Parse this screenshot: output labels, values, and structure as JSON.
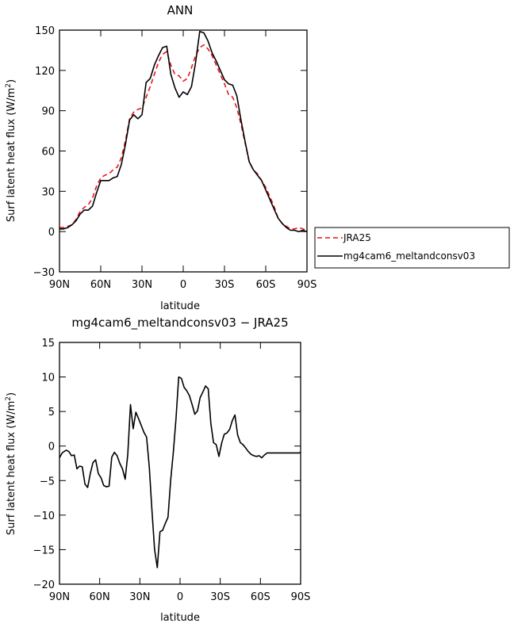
{
  "chart_data": [
    {
      "type": "line",
      "title": "ANN",
      "xlabel": "latitude",
      "ylabel": "Surf latent heat flux (W/m",
      "ylabel_sup": "2",
      "ylabel_end": ")",
      "xlim": [
        -90,
        90
      ],
      "ylim": [
        -30,
        150
      ],
      "xticks": [
        -90,
        -60,
        -30,
        0,
        30,
        60,
        90
      ],
      "xticklabels": [
        "90N",
        "60N",
        "30N",
        "0",
        "30S",
        "60S",
        "90S"
      ],
      "yticks": [
        -30,
        0,
        30,
        60,
        90,
        120,
        150
      ],
      "yticklabels": [
        "−30",
        "0",
        "30",
        "60",
        "90",
        "120",
        "150"
      ],
      "grid": false,
      "legend_position": "right",
      "series": [
        {
          "name": "JRA25",
          "color": "#e8141a",
          "dash": true,
          "x": [
            -90,
            -87,
            -84,
            -81,
            -78,
            -75,
            -72,
            -69,
            -66,
            -63,
            -60,
            -57,
            -54,
            -51,
            -48,
            -45,
            -42,
            -39,
            -36,
            -33,
            -30,
            -27,
            -24,
            -21,
            -18,
            -15,
            -12,
            -9,
            -6,
            -3,
            0,
            3,
            6,
            9,
            12,
            15,
            18,
            21,
            24,
            27,
            30,
            33,
            36,
            39,
            42,
            45,
            48,
            51,
            54,
            57,
            60,
            63,
            66,
            69,
            72,
            75,
            78,
            81,
            84,
            87,
            90
          ],
          "y": [
            3,
            3,
            4,
            5,
            9,
            15,
            18,
            20,
            25,
            34,
            40,
            42,
            43,
            46,
            48,
            55,
            68,
            84,
            89,
            91,
            92,
            100,
            108,
            117,
            126,
            132,
            134,
            124,
            117,
            116,
            112,
            114,
            122,
            131,
            137,
            139,
            136,
            131,
            124,
            117,
            110,
            102,
            100,
            92,
            80,
            66,
            52,
            46,
            43,
            38,
            33,
            26,
            19,
            10,
            6,
            4,
            2,
            2,
            3,
            2,
            1
          ]
        },
        {
          "name": "mg4cam6_meltandconsv03",
          "color": "#000000",
          "dash": false,
          "x": [
            -90,
            -87,
            -84,
            -81,
            -78,
            -75,
            -72,
            -69,
            -66,
            -63,
            -60,
            -57,
            -54,
            -51,
            -48,
            -45,
            -42,
            -39,
            -36,
            -33,
            -30,
            -27,
            -24,
            -21,
            -18,
            -15,
            -12,
            -9,
            -6,
            -3,
            0,
            3,
            6,
            9,
            12,
            15,
            18,
            21,
            24,
            27,
            30,
            33,
            36,
            39,
            42,
            45,
            48,
            51,
            54,
            57,
            60,
            63,
            66,
            69,
            72,
            75,
            78,
            81,
            84,
            87,
            90
          ],
          "y": [
            2,
            2,
            3,
            5,
            8,
            13,
            16,
            16,
            19,
            29,
            38,
            38,
            38,
            40,
            41,
            50,
            65,
            83,
            87,
            84,
            87,
            111,
            114,
            124,
            131,
            137,
            138,
            117,
            107,
            100,
            104,
            102,
            108,
            126,
            149,
            148,
            142,
            133,
            127,
            120,
            113,
            110,
            109,
            101,
            83,
            67,
            52,
            46,
            42,
            38,
            31,
            24,
            17,
            10,
            6,
            3,
            1,
            1,
            0,
            1,
            0
          ]
        }
      ]
    },
    {
      "type": "line",
      "title": "mg4cam6_meltandconsv03 − JRA25",
      "xlabel": "latitude",
      "ylabel": "Surf latent heat flux (W/m",
      "ylabel_sup": "2",
      "ylabel_end": ")",
      "xlim": [
        -90,
        90
      ],
      "ylim": [
        -20,
        15
      ],
      "xticks": [
        -90,
        -60,
        -30,
        0,
        30,
        60,
        90
      ],
      "xticklabels": [
        "90N",
        "60N",
        "30N",
        "0",
        "30S",
        "60S",
        "90S"
      ],
      "yticks": [
        -20,
        -15,
        -10,
        -5,
        0,
        5,
        10,
        15
      ],
      "yticklabels": [
        "−20",
        "−15",
        "−10",
        "−5",
        "0",
        "5",
        "10",
        "15"
      ],
      "grid": false,
      "series": [
        {
          "name": "",
          "color": "#000000",
          "dash": false,
          "x": [
            -90,
            -88,
            -85,
            -83,
            -81,
            -79,
            -77,
            -75,
            -73,
            -71,
            -69,
            -67,
            -65,
            -63,
            -61,
            -59,
            -57,
            -55,
            -53,
            -51,
            -49,
            -47,
            -45,
            -43,
            -41,
            -39,
            -37,
            -35,
            -33,
            -31,
            -29,
            -27,
            -25,
            -23,
            -21,
            -19,
            -17,
            -15,
            -13,
            -11,
            -9,
            -7,
            -5,
            -3,
            -1,
            1,
            3,
            5,
            7,
            9,
            11,
            13,
            15,
            17,
            19,
            21,
            23,
            25,
            27,
            29,
            31,
            33,
            35,
            37,
            39,
            41,
            43,
            45,
            47,
            49,
            51,
            53,
            55,
            57,
            59,
            61,
            63,
            65,
            67,
            69,
            71,
            73,
            75,
            77,
            79,
            81,
            83,
            85,
            87,
            89,
            90
          ],
          "y": [
            -1.7,
            -1.0,
            -0.6,
            -0.8,
            -1.4,
            -1.3,
            -3.3,
            -2.9,
            -3.0,
            -5.5,
            -6.0,
            -4.0,
            -2.4,
            -2.0,
            -4.0,
            -4.6,
            -5.7,
            -5.9,
            -5.8,
            -1.6,
            -0.9,
            -1.4,
            -2.5,
            -3.3,
            -4.8,
            -1.2,
            6.0,
            2.5,
            4.9,
            4.0,
            3.0,
            2.0,
            1.3,
            -3.0,
            -9.2,
            -15.0,
            -17.6,
            -12.4,
            -12.2,
            -11.2,
            -10.3,
            -4.9,
            -0.8,
            4.0,
            10.0,
            9.8,
            8.5,
            8.0,
            7.3,
            6.0,
            4.6,
            5.1,
            7.0,
            7.8,
            8.7,
            8.3,
            3.3,
            0.5,
            0.2,
            -1.5,
            0.4,
            1.7,
            1.9,
            2.4,
            3.7,
            4.5,
            1.6,
            0.5,
            0.2,
            -0.3,
            -0.8,
            -1.2,
            -1.4,
            -1.5,
            -1.4,
            -1.7,
            -1.3,
            -1.0,
            -1.0,
            -1.0,
            -1.0,
            -1.0,
            -1.0,
            -1.0,
            -1.0,
            -1.0,
            -1.0,
            -1.0,
            -1.0,
            -1.0,
            -0.9
          ]
        }
      ]
    }
  ]
}
